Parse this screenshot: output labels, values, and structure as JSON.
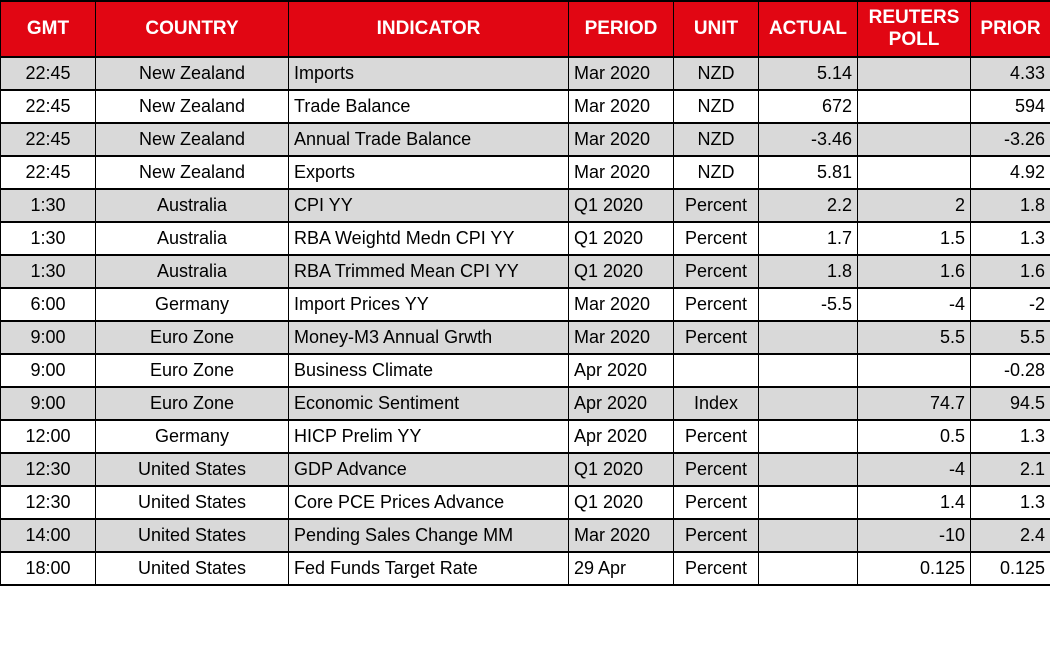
{
  "colors": {
    "header_bg": "#e10613",
    "header_text": "#ffffff",
    "row_bg": "#ffffff",
    "row_alt": "#d9d9d9",
    "border": "#000000",
    "text": "#000000"
  },
  "chart_data": {
    "type": "table",
    "columns": [
      {
        "key": "gmt",
        "label": "GMT"
      },
      {
        "key": "country",
        "label": "COUNTRY"
      },
      {
        "key": "indicator",
        "label": "INDICATOR"
      },
      {
        "key": "period",
        "label": "PERIOD"
      },
      {
        "key": "unit",
        "label": "UNIT"
      },
      {
        "key": "actual",
        "label": "ACTUAL"
      },
      {
        "key": "reuters_poll",
        "label": "REUTERS POLL"
      },
      {
        "key": "prior",
        "label": "PRIOR"
      }
    ],
    "rows": [
      [
        "22:45",
        "New Zealand",
        "Imports",
        "Mar 2020",
        "NZD",
        "5.14",
        "",
        "4.33"
      ],
      [
        "22:45",
        "New Zealand",
        "Trade Balance",
        "Mar 2020",
        "NZD",
        "672",
        "",
        "594"
      ],
      [
        "22:45",
        "New Zealand",
        "Annual Trade Balance",
        "Mar 2020",
        "NZD",
        "-3.46",
        "",
        "-3.26"
      ],
      [
        "22:45",
        "New Zealand",
        "Exports",
        "Mar 2020",
        "NZD",
        "5.81",
        "",
        "4.92"
      ],
      [
        "1:30",
        "Australia",
        "CPI YY",
        "Q1 2020",
        "Percent",
        "2.2",
        "2",
        "1.8"
      ],
      [
        "1:30",
        "Australia",
        "RBA Weightd Medn CPI YY",
        "Q1 2020",
        "Percent",
        "1.7",
        "1.5",
        "1.3"
      ],
      [
        "1:30",
        "Australia",
        "RBA Trimmed Mean CPI YY",
        "Q1 2020",
        "Percent",
        "1.8",
        "1.6",
        "1.6"
      ],
      [
        "6:00",
        "Germany",
        "Import Prices YY",
        "Mar 2020",
        "Percent",
        "-5.5",
        "-4",
        "-2"
      ],
      [
        "9:00",
        "Euro Zone",
        "Money-M3 Annual Grwth",
        "Mar 2020",
        "Percent",
        "",
        "5.5",
        "5.5"
      ],
      [
        "9:00",
        "Euro Zone",
        "Business Climate",
        "Apr 2020",
        "",
        "",
        "",
        "-0.28"
      ],
      [
        "9:00",
        "Euro Zone",
        "Economic Sentiment",
        "Apr 2020",
        "Index",
        "",
        "74.7",
        "94.5"
      ],
      [
        "12:00",
        "Germany",
        "HICP Prelim YY",
        "Apr 2020",
        "Percent",
        "",
        "0.5",
        "1.3"
      ],
      [
        "12:30",
        "United States",
        "GDP Advance",
        "Q1 2020",
        "Percent",
        "",
        "-4",
        "2.1"
      ],
      [
        "12:30",
        "United States",
        "Core PCE Prices Advance",
        "Q1 2020",
        "Percent",
        "",
        "1.4",
        "1.3"
      ],
      [
        "14:00",
        "United States",
        "Pending Sales Change MM",
        "Mar 2020",
        "Percent",
        "",
        "-10",
        "2.4"
      ],
      [
        "18:00",
        "United States",
        "Fed Funds Target Rate",
        "29 Apr",
        "Percent",
        "",
        "0.125",
        "0.125"
      ]
    ]
  }
}
